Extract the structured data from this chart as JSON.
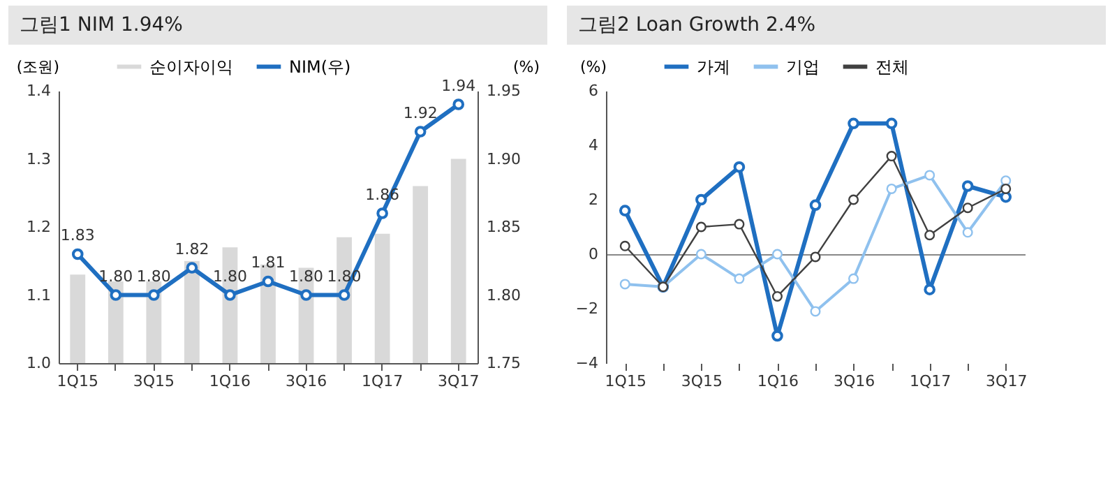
{
  "chart_data": [
    {
      "type": "bar",
      "title": "그림1  NIM 1.94%",
      "ylabel": "(조원)",
      "y2label": "(%)",
      "categories": [
        "1Q15",
        null,
        "3Q15",
        null,
        "1Q16",
        null,
        "3Q16",
        null,
        "1Q17",
        null,
        "3Q17"
      ],
      "series": [
        {
          "name": "순이자이익",
          "type": "bar",
          "color": "#d9d9d9",
          "values": [
            1.13,
            1.12,
            1.12,
            1.15,
            1.17,
            1.145,
            1.14,
            1.185,
            1.19,
            1.26,
            1.3
          ]
        },
        {
          "name": "NIM(우)",
          "type": "line",
          "axis": "y2",
          "color": "#1f6fc1",
          "values": [
            1.83,
            1.8,
            1.8,
            1.82,
            1.8,
            1.81,
            1.8,
            1.8,
            1.86,
            1.92,
            1.94
          ],
          "value_labels": [
            "1.83",
            "1.80",
            "1.80",
            "1.82",
            "1.80",
            "1.81",
            "1.80",
            "1.80",
            "1.86",
            "1.92",
            "1.94"
          ]
        }
      ],
      "ylim": [
        1.0,
        1.4
      ],
      "yticks": [
        {
          "value": 1.0,
          "label": "1.0"
        },
        {
          "value": 1.1,
          "label": "1.1"
        },
        {
          "value": 1.2,
          "label": "1.2"
        },
        {
          "value": 1.3,
          "label": "1.3"
        },
        {
          "value": 1.4,
          "label": "1.4"
        }
      ],
      "y2lim": [
        1.75,
        1.95
      ],
      "y2ticks": [
        {
          "value": 1.75,
          "label": "1.75"
        },
        {
          "value": 1.8,
          "label": "1.80"
        },
        {
          "value": 1.85,
          "label": "1.85"
        },
        {
          "value": 1.9,
          "label": "1.90"
        },
        {
          "value": 1.95,
          "label": "1.95"
        }
      ],
      "legend": "top",
      "marker": "circle"
    },
    {
      "type": "line",
      "title": "그림2  Loan Growth 2.4%",
      "ylabel": "(%)",
      "categories": [
        "1Q15",
        null,
        "3Q15",
        null,
        "1Q16",
        null,
        "3Q16",
        null,
        "1Q17",
        null,
        "3Q17"
      ],
      "series": [
        {
          "name": "가계",
          "color": "#1f6fc1",
          "values": [
            1.6,
            -1.2,
            2.0,
            3.2,
            -3.0,
            1.8,
            4.8,
            4.8,
            -1.3,
            2.5,
            2.1
          ]
        },
        {
          "name": "기업",
          "color": "#8fc1ee",
          "values": [
            -1.1,
            -1.2,
            0.0,
            -0.9,
            0.0,
            -2.1,
            -0.9,
            2.4,
            2.9,
            0.8,
            2.7
          ]
        },
        {
          "name": "전체",
          "color": "#404040",
          "values": [
            0.3,
            -1.2,
            1.0,
            1.1,
            -1.55,
            -0.1,
            2.0,
            3.6,
            0.7,
            1.7,
            2.4
          ]
        }
      ],
      "ylim": [
        -4,
        6
      ],
      "yticks": [
        -4,
        -2,
        0,
        2,
        4,
        6
      ],
      "legend": "top",
      "marker": "circle"
    }
  ]
}
